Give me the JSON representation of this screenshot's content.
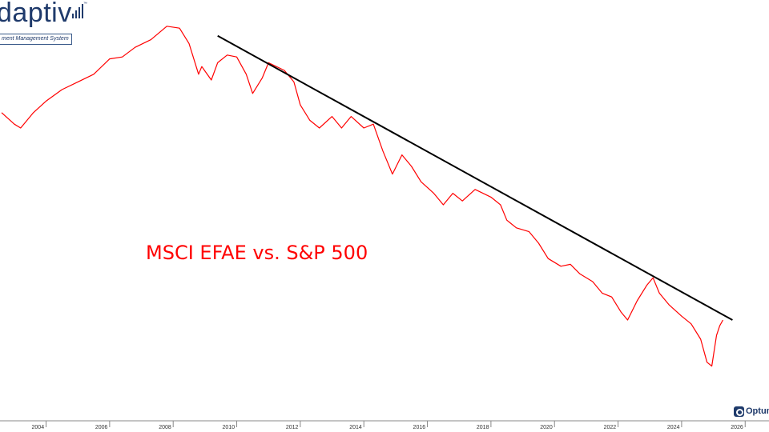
{
  "logo": {
    "name": "daptiv",
    "tagline": "ment Management System",
    "trademark": "™"
  },
  "annotation": "MSCI EFAE vs. S&P 500",
  "brand": {
    "name": "Optum"
  },
  "colors": {
    "series": "#ff0000",
    "trendline": "#000000",
    "axis": "#888888",
    "brand": "#1f3a6b"
  },
  "chart_data": {
    "type": "line",
    "title": "",
    "xlabel": "",
    "ylabel": "",
    "x_tick_labels": [
      "2004",
      "2006",
      "2008",
      "2010",
      "2012",
      "2014",
      "2016",
      "2018",
      "2020",
      "2022",
      "2024",
      "2026"
    ],
    "xlim": [
      2002.55,
      2026.75
    ],
    "ylim": [
      0,
      100
    ],
    "y_axis_shown": false,
    "grid": false,
    "legend": "none",
    "series": [
      {
        "color": "#ff0000",
        "points": [
          [
            2002.6,
            74.0
          ],
          [
            2003.0,
            71.0
          ],
          [
            2003.2,
            70.0
          ],
          [
            2003.6,
            74.0
          ],
          [
            2004.0,
            77.0
          ],
          [
            2004.5,
            80.0
          ],
          [
            2005.0,
            82.0
          ],
          [
            2005.5,
            84.0
          ],
          [
            2006.0,
            88.0
          ],
          [
            2006.4,
            88.5
          ],
          [
            2006.8,
            91.0
          ],
          [
            2007.3,
            93.0
          ],
          [
            2007.8,
            96.5
          ],
          [
            2008.2,
            96.0
          ],
          [
            2008.5,
            92.0
          ],
          [
            2008.8,
            84.0
          ],
          [
            2008.9,
            86.0
          ],
          [
            2009.2,
            82.5
          ],
          [
            2009.4,
            87.0
          ],
          [
            2009.7,
            89.0
          ],
          [
            2010.0,
            88.5
          ],
          [
            2010.3,
            84.0
          ],
          [
            2010.5,
            79.0
          ],
          [
            2010.8,
            83.0
          ],
          [
            2011.0,
            87.0
          ],
          [
            2011.5,
            85.0
          ],
          [
            2011.8,
            82.0
          ],
          [
            2012.0,
            76.0
          ],
          [
            2012.3,
            72.0
          ],
          [
            2012.6,
            70.0
          ],
          [
            2013.0,
            73.0
          ],
          [
            2013.3,
            70.0
          ],
          [
            2013.6,
            73.0
          ],
          [
            2014.0,
            70.0
          ],
          [
            2014.3,
            71.0
          ],
          [
            2014.6,
            64.0
          ],
          [
            2014.9,
            58.0
          ],
          [
            2015.2,
            63.0
          ],
          [
            2015.5,
            60.0
          ],
          [
            2015.8,
            56.0
          ],
          [
            2016.2,
            53.0
          ],
          [
            2016.5,
            50.0
          ],
          [
            2016.8,
            53.0
          ],
          [
            2017.1,
            51.0
          ],
          [
            2017.5,
            54.0
          ],
          [
            2018.0,
            52.0
          ],
          [
            2018.3,
            50.0
          ],
          [
            2018.5,
            46.0
          ],
          [
            2018.8,
            44.0
          ],
          [
            2019.2,
            43.0
          ],
          [
            2019.5,
            40.0
          ],
          [
            2019.8,
            36.0
          ],
          [
            2020.2,
            34.0
          ],
          [
            2020.5,
            34.5
          ],
          [
            2020.8,
            32.0
          ],
          [
            2021.2,
            30.0
          ],
          [
            2021.5,
            27.0
          ],
          [
            2021.8,
            26.0
          ],
          [
            2022.1,
            22.0
          ],
          [
            2022.3,
            20.0
          ],
          [
            2022.6,
            25.0
          ],
          [
            2022.9,
            29.0
          ],
          [
            2023.1,
            31.0
          ],
          [
            2023.3,
            27.0
          ],
          [
            2023.6,
            24.0
          ],
          [
            2024.0,
            21.0
          ],
          [
            2024.3,
            19.0
          ],
          [
            2024.6,
            15.0
          ],
          [
            2024.8,
            9.0
          ],
          [
            2024.95,
            8.0
          ],
          [
            2025.1,
            16.0
          ],
          [
            2025.2,
            18.5
          ],
          [
            2025.3,
            20.0
          ]
        ]
      },
      {
        "color": "#000000",
        "points": [
          [
            2009.4,
            94.0
          ],
          [
            2025.6,
            20.0
          ]
        ]
      }
    ]
  }
}
